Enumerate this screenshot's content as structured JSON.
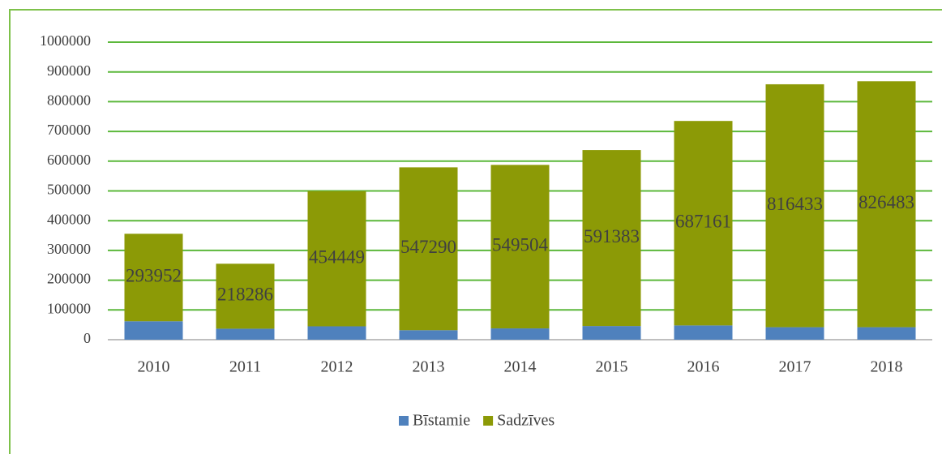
{
  "chart_data": {
    "type": "stacked_bar",
    "categories": [
      "2010",
      "2011",
      "2012",
      "2013",
      "2014",
      "2015",
      "2016",
      "2017",
      "2018"
    ],
    "series": [
      {
        "name": "Bīstamie",
        "color": "#4f81bd",
        "values": [
          62000,
          37000,
          45000,
          32000,
          38000,
          46000,
          48000,
          42000,
          42000
        ]
      },
      {
        "name": "Sadzīves",
        "color": "#8c9a06",
        "values": [
          293952,
          218286,
          454449,
          547290,
          549504,
          591383,
          687161,
          816433,
          826483
        ],
        "data_labels": true
      }
    ],
    "ylim": [
      0,
      1000000
    ],
    "yticks": [
      0,
      100000,
      200000,
      300000,
      400000,
      500000,
      600000,
      700000,
      800000,
      900000,
      1000000
    ],
    "grid": true,
    "legend": "bottom"
  }
}
